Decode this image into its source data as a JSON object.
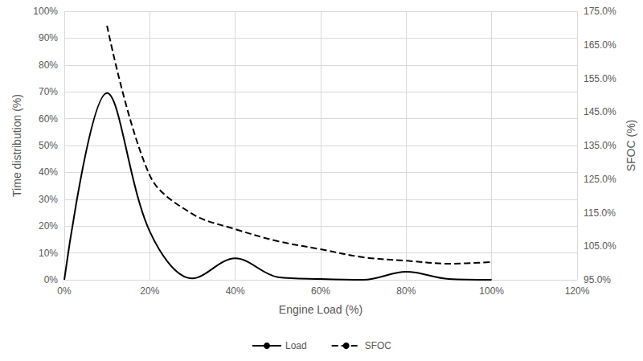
{
  "chart_data": {
    "type": "line",
    "x_label": "Engine Load (%)",
    "y_label": "Time distribution (%)",
    "y2_label": "SFOC (%)",
    "x": [
      0,
      10,
      20,
      30,
      40,
      50,
      60,
      70,
      80,
      90,
      100
    ],
    "series": [
      {
        "name": "Load",
        "color": "#000000",
        "line_style": "solid",
        "marker": "none",
        "values": [
          0,
          69.5,
          18,
          0.5,
          8,
          1,
          0.3,
          0,
          3,
          0.3,
          0
        ]
      },
      {
        "name": "SFOC",
        "color": "#000000",
        "line_style": "dashed",
        "marker": "none",
        "axis": "y2",
        "values": [
          null,
          170.7,
          126.1,
          114.6,
          110.1,
          106.5,
          104.1,
          101.7,
          100.7,
          99.8,
          100.3
        ]
      }
    ],
    "xlim": [
      0,
      120
    ],
    "xticks": [
      {
        "value": 0,
        "label": "0%"
      },
      {
        "value": 20,
        "label": "20%"
      },
      {
        "value": 40,
        "label": "40%"
      },
      {
        "value": 60,
        "label": "60%"
      },
      {
        "value": 80,
        "label": "80%"
      },
      {
        "value": 100,
        "label": "100%"
      },
      {
        "value": 120,
        "label": "120%"
      }
    ],
    "ylim": [
      0,
      100
    ],
    "yticks": [
      {
        "value": 0,
        "label": "0%"
      },
      {
        "value": 10,
        "label": "10%"
      },
      {
        "value": 20,
        "label": "20%"
      },
      {
        "value": 30,
        "label": "30%"
      },
      {
        "value": 40,
        "label": "40%"
      },
      {
        "value": 50,
        "label": "50%"
      },
      {
        "value": 60,
        "label": "60%"
      },
      {
        "value": 70,
        "label": "70%"
      },
      {
        "value": 80,
        "label": "80%"
      },
      {
        "value": 90,
        "label": "90%"
      },
      {
        "value": 100,
        "label": "100%"
      }
    ],
    "y2lim": [
      95,
      175
    ],
    "y2ticks": [
      {
        "value": 95,
        "label": "95.0%"
      },
      {
        "value": 105,
        "label": "105.0%"
      },
      {
        "value": 115,
        "label": "115.0%"
      },
      {
        "value": 125,
        "label": "125.0%"
      },
      {
        "value": 135,
        "label": "135.0%"
      },
      {
        "value": 145,
        "label": "145.0%"
      },
      {
        "value": 155,
        "label": "155.0%"
      },
      {
        "value": 165,
        "label": "165.0%"
      },
      {
        "value": 175,
        "label": "175.0%"
      }
    ],
    "grid": true,
    "legend": "bottom"
  }
}
